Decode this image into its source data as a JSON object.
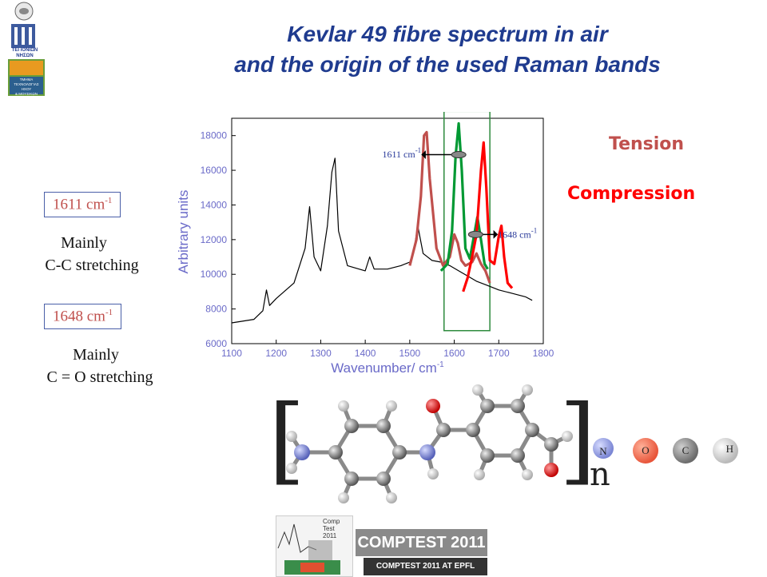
{
  "title": {
    "line1": "Kevlar 49 fibre spectrum in air",
    "line2": "and the origin of the used Raman bands"
  },
  "bands": [
    {
      "value": "1611 cm",
      "sup": "-1",
      "desc_line1": "Mainly",
      "desc_line2": "C-C stretching"
    },
    {
      "value": "1648 cm",
      "sup": "-1",
      "desc_line1": "Mainly",
      "desc_line2": "C = O stretching"
    }
  ],
  "legend": {
    "tension": "Tension",
    "compression": "Compression",
    "tension_color": "#c0504d",
    "compression_color": "#ff0000"
  },
  "chart_data": {
    "type": "line",
    "xlabel": "Wavenumber/ cm",
    "xlabel_sup": "-1",
    "ylabel": "Arbitrary units",
    "xlim": [
      1100,
      1800
    ],
    "ylim": [
      6000,
      19000
    ],
    "x_ticks": [
      1100,
      1200,
      1300,
      1400,
      1500,
      1600,
      1700,
      1800
    ],
    "y_ticks": [
      6000,
      8000,
      10000,
      12000,
      14000,
      16000,
      18000
    ],
    "annotations": [
      {
        "text": "1611 cm",
        "sup": "-1"
      },
      {
        "text": "1648 cm",
        "sup": "-1"
      }
    ],
    "series": [
      {
        "color": "#000000",
        "x": [
          1100,
          1150,
          1170,
          1178,
          1185,
          1200,
          1240,
          1265,
          1275,
          1285,
          1300,
          1315,
          1325,
          1332,
          1340,
          1360,
          1400,
          1410,
          1420,
          1450,
          1480,
          1500,
          1510,
          1518,
          1530,
          1550,
          1570,
          1590,
          1610,
          1630,
          1650,
          1670,
          1700,
          1730,
          1760,
          1775
        ],
        "y": [
          7200,
          7400,
          7900,
          9100,
          8200,
          8600,
          9500,
          11500,
          13900,
          11000,
          10200,
          12800,
          15900,
          16700,
          12500,
          10500,
          10200,
          11000,
          10300,
          10300,
          10500,
          10700,
          11500,
          12800,
          11200,
          10800,
          10700,
          10500,
          10200,
          9900,
          9600,
          9400,
          9100,
          8900,
          8700,
          8500
        ]
      },
      {
        "color": "#c0504d",
        "x": [
          1500,
          1515,
          1525,
          1532,
          1538,
          1545,
          1560,
          1575,
          1590,
          1600,
          1608,
          1616,
          1625,
          1640,
          1650,
          1660,
          1670,
          1680
        ],
        "y": [
          10500,
          12000,
          14500,
          18000,
          18200,
          15500,
          11500,
          10500,
          11000,
          12300,
          11800,
          10800,
          10500,
          10700,
          11200,
          10600,
          10200,
          9500
        ]
      },
      {
        "color": "#009933",
        "x": [
          1570,
          1585,
          1595,
          1603,
          1610,
          1617,
          1625,
          1635,
          1645,
          1652,
          1660,
          1668,
          1675
        ],
        "y": [
          10200,
          10600,
          12500,
          16800,
          18700,
          16000,
          11500,
          10900,
          12300,
          13300,
          12000,
          10600,
          10300
        ]
      },
      {
        "color": "#ff0000",
        "x": [
          1620,
          1630,
          1640,
          1650,
          1660,
          1666,
          1672,
          1680,
          1690,
          1700,
          1706,
          1712,
          1720,
          1730
        ],
        "y": [
          9000,
          9800,
          11000,
          12300,
          16000,
          17600,
          15000,
          10800,
          10600,
          12200,
          12800,
          11000,
          9500,
          9200
        ]
      }
    ],
    "highlight_box": {
      "x_range": [
        1577,
        1680
      ],
      "y_range": [
        6750,
        19400
      ],
      "color": "#2e8b3e"
    }
  },
  "molecule": {
    "repeat_label": "n",
    "atom_legend": [
      {
        "symbol": "N",
        "color": "#7b86d4"
      },
      {
        "symbol": "O",
        "color": "#e8553a"
      },
      {
        "symbol": "C",
        "color": "#777777"
      },
      {
        "symbol": "H",
        "color": "#d5d5d5"
      }
    ]
  },
  "logos": {
    "inst_line1": "ΤΕΙ ΙΟΝΙΩΝ",
    "inst_line2": "ΝΗΣΩΝ",
    "inst_line3": "ΤΜΗΜΑ",
    "inst_line4": "ΤΕΧΝΟΛΟΓΙΑΣ ΗΧΟΥ",
    "inst_line5": "& ΜΟΥΣΙΚΩΝ ΟΡΓΑΝΩΝ",
    "comptest_small1": "Comp",
    "comptest_small2": "Test",
    "comptest_small3": "2011",
    "comptest_main": "COMPTEST 2011",
    "comptest_sub": "COMPTEST 2011 AT EPFL"
  }
}
